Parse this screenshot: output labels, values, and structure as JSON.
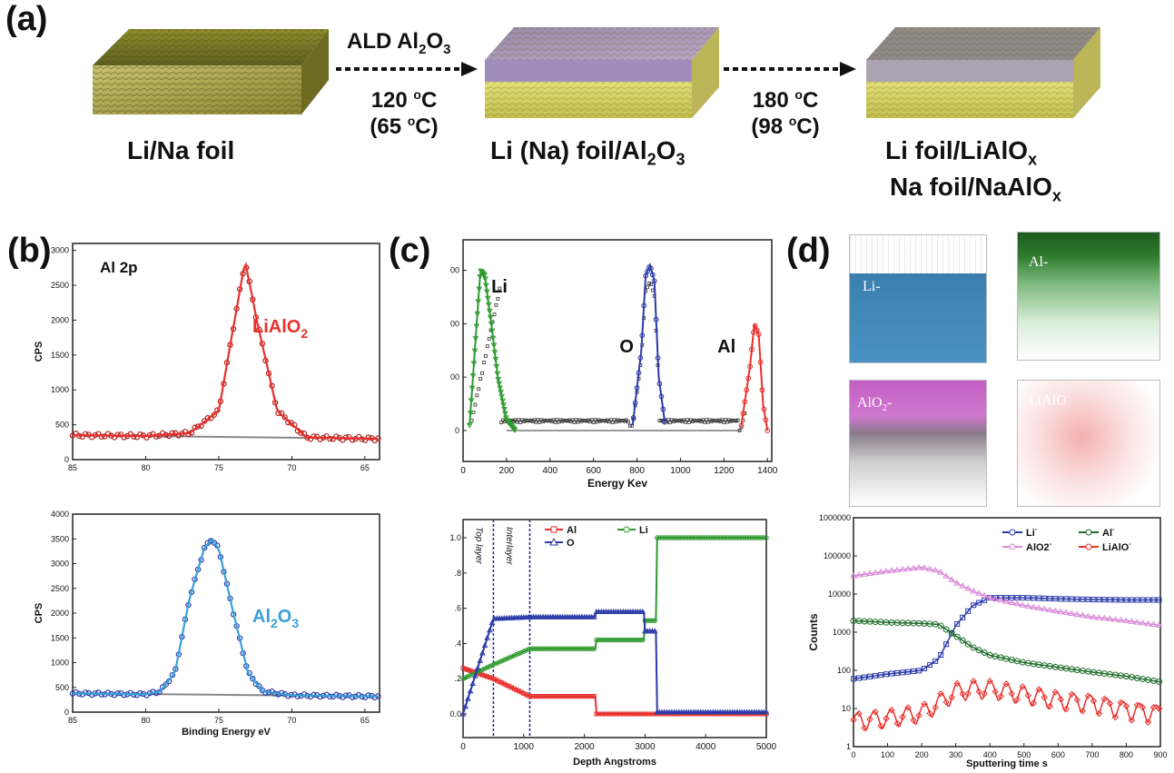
{
  "panel_a": {
    "letter": "(a)",
    "stages": [
      "Li/Na foil",
      "Li (Na) foil/Al",
      "Li foil/LiAlO",
      "Na foil/NaAlO"
    ],
    "stage2_sub": "2",
    "stage2_o": "O",
    "stage2_sub2": "3",
    "stage3_sub": "x",
    "stage4_sub": "x",
    "arrow1": {
      "top": "ALD Al",
      "top_sub1": "2",
      "top_o": "O",
      "top_sub2": "3",
      "temp": "120 ",
      "temp_paren": "(65 ",
      "deg": "o",
      "unit": "C",
      "close": "C)"
    },
    "arrow2": {
      "temp": "180 ",
      "temp_paren": "(98 ",
      "deg": "o",
      "unit": "C",
      "close": "C)"
    }
  },
  "panel_b": {
    "letter": "(b)",
    "top": {
      "label": "Al 2p",
      "species": "LiAlO",
      "species_sub": "2",
      "ylabel": "CPS",
      "xlabel": "Binding Energy eV",
      "yticks": [
        "0",
        "500",
        "1000",
        "1500",
        "2000",
        "2500",
        "3000"
      ],
      "xticks": [
        "85",
        "80",
        "75",
        "70",
        "65"
      ]
    },
    "bottom": {
      "species": "Al",
      "species_sub1": "2",
      "species_o": "O",
      "species_sub2": "3",
      "ylabel": "CPS",
      "xlabel": "Binding Energy eV",
      "yticks": [
        "0",
        "500",
        "1000",
        "1500",
        "2000",
        "2500",
        "3000",
        "3500",
        "4000"
      ],
      "xticks": [
        "85",
        "80",
        "75",
        "70",
        "65"
      ]
    }
  },
  "panel_c": {
    "letter": "(c)",
    "top": {
      "labels": [
        "Li",
        "O",
        "Al"
      ],
      "xlabel": "Energy Kev",
      "xticks": [
        "0",
        "200",
        "400",
        "600",
        "800",
        "1000",
        "1200",
        "1400"
      ],
      "yticks": [
        "00",
        "00",
        "00",
        "0"
      ]
    },
    "bottom": {
      "xlabel": "Depth Angstroms",
      "xticks": [
        "0",
        "1000",
        "2000",
        "3000",
        "4000",
        "5000"
      ],
      "yticks": [
        "1.0",
        ".8",
        ".6",
        ".4",
        ".2",
        "0.0"
      ],
      "layer1": "Top layer",
      "layer2": "Interlayer",
      "legend": [
        "Al",
        "Li",
        "O"
      ]
    }
  },
  "panel_d": {
    "letter": "(d)",
    "cubes": [
      "Li-",
      "Al-",
      "AlO",
      "LiAlO"
    ],
    "cube3_sub": "2",
    "cube3_tail": "-",
    "cube4_sup": "-",
    "chart": {
      "ylabel": "Counts",
      "xlabel": "Sputtering time s",
      "xticks": [
        "0",
        "100",
        "200",
        "300",
        "400",
        "500",
        "600",
        "700",
        "800",
        "900"
      ],
      "yticks": [
        "1000000",
        "100000",
        "10000",
        "1000",
        "100",
        "10",
        "1"
      ],
      "legend": [
        "Li",
        "Al",
        "AlO2",
        "LiAlO"
      ],
      "sup": "-"
    }
  },
  "colors": {
    "red": "#e8302c",
    "blue": "#2a3aa8",
    "lightblue": "#3a9fd8",
    "green": "#2e9a2e",
    "darkgreen": "#1f6b2a",
    "pink": "#d98ad8",
    "gold": "#b8b040"
  },
  "chart_data": [
    {
      "type": "line",
      "title": "",
      "xlabel": "Binding Energy eV",
      "ylabel": "CPS",
      "xlim": [
        85,
        64
      ],
      "ylim": [
        0,
        3100
      ],
      "x": [
        85,
        80,
        77,
        75,
        74,
        73.2,
        72.4,
        71,
        69,
        65
      ],
      "series": [
        {
          "name": "LiAlO2",
          "values": [
            350,
            340,
            380,
            700,
            1900,
            2850,
            2000,
            700,
            320,
            300
          ]
        }
      ]
    },
    {
      "type": "line",
      "title": "",
      "xlabel": "Binding Energy eV",
      "ylabel": "CPS",
      "xlim": [
        85,
        64
      ],
      "ylim": [
        0,
        4000
      ],
      "x": [
        85,
        80,
        79,
        78,
        77,
        76,
        75.5,
        75,
        74,
        73,
        72,
        70,
        65
      ],
      "series": [
        {
          "name": "Al2O3",
          "values": [
            380,
            360,
            420,
            800,
            2300,
            3300,
            3500,
            3300,
            2000,
            800,
            420,
            340,
            320
          ]
        }
      ]
    },
    {
      "type": "line",
      "title": "",
      "xlabel": "Energy Kev",
      "ylabel": "",
      "xlim": [
        0,
        1420
      ],
      "series": [
        {
          "name": "Li",
          "x": [
            30,
            80,
            100,
            130,
            160,
            200,
            240
          ],
          "values": [
            0.1,
            3,
            2.9,
            2,
            1,
            0.2,
            0
          ]
        },
        {
          "name": "O",
          "x": [
            780,
            820,
            840,
            860,
            880,
            900,
            930
          ],
          "values": [
            0.1,
            1.5,
            2.9,
            3.1,
            2.8,
            1,
            0.1
          ]
        },
        {
          "name": "Al",
          "x": [
            1280,
            1320,
            1340,
            1360,
            1380,
            1400
          ],
          "values": [
            0.1,
            1.2,
            2,
            1.8,
            0.5,
            0
          ]
        }
      ]
    },
    {
      "type": "line",
      "title": "",
      "xlabel": "Depth Angstroms",
      "ylabel": "",
      "xlim": [
        0,
        5000
      ],
      "ylim": [
        0,
        1.05
      ],
      "x": [
        0,
        500,
        1100,
        2200,
        3000,
        3200,
        5000
      ],
      "series": [
        {
          "name": "Al",
          "values": [
            0.26,
            0.2,
            0.1,
            0.0,
            0.0,
            0.0,
            0.0
          ]
        },
        {
          "name": "Li",
          "values": [
            0.2,
            0.28,
            0.37,
            0.42,
            0.53,
            1.0,
            1.0
          ]
        },
        {
          "name": "O",
          "values": [
            0.0,
            0.54,
            0.55,
            0.58,
            0.47,
            0.01,
            0.01
          ]
        }
      ]
    },
    {
      "type": "line",
      "title": "",
      "xlabel": "Sputtering time s",
      "ylabel": "Counts",
      "xlim": [
        0,
        900
      ],
      "ylim": [
        1,
        1000000
      ],
      "yscale": "log",
      "x": [
        0,
        100,
        200,
        250,
        300,
        350,
        400,
        500,
        600,
        700,
        800,
        900
      ],
      "series": [
        {
          "name": "Li-",
          "values": [
            60,
            80,
            100,
            200,
            1500,
            5000,
            8000,
            8000,
            7500,
            7200,
            7000,
            7000
          ]
        },
        {
          "name": "Al-",
          "values": [
            2000,
            1800,
            1700,
            1600,
            800,
            400,
            250,
            160,
            120,
            90,
            70,
            50
          ]
        },
        {
          "name": "AlO2-",
          "values": [
            30000,
            40000,
            50000,
            40000,
            20000,
            12000,
            8000,
            5000,
            3500,
            2500,
            2000,
            1500
          ]
        },
        {
          "name": "LiAlO-",
          "values": [
            5,
            6,
            8,
            15,
            30,
            35,
            35,
            25,
            18,
            15,
            10,
            8
          ]
        }
      ]
    }
  ]
}
